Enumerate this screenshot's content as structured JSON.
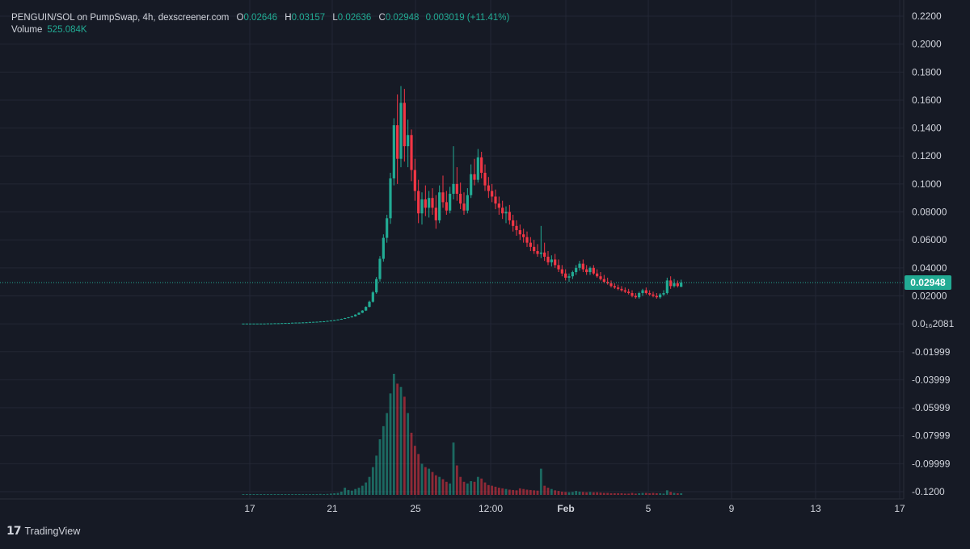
{
  "header": {
    "symbol": "PENGUIN/SOL on PumpSwap, 4h, dexscreener.com",
    "open_label": "O",
    "open": "0.02646",
    "high_label": "H",
    "high": "0.03157",
    "low_label": "L",
    "low": "0.02636",
    "close_label": "C",
    "close": "0.02948",
    "change": "0.003019 (+11.41%)",
    "volume_label": "Volume",
    "volume": "525.084K"
  },
  "footer": {
    "brand": "TradingView",
    "logo_icon": "tradingview-logo-icon"
  },
  "colors": {
    "bg": "#161a25",
    "grid": "#232735",
    "up": "#22ab94",
    "down": "#f23645",
    "text": "#d1d4dc"
  },
  "chart_data": {
    "type": "candlestick",
    "title": "PENGUIN/SOL on PumpSwap, 4h, dexscreener.com",
    "x_tick_labels": [
      "17",
      "21",
      "25",
      "12:00",
      "Feb",
      "5",
      "9",
      "13",
      "17"
    ],
    "y_tick_labels": [
      "0.2200",
      "0.2000",
      "0.1800",
      "0.1600",
      "0.1400",
      "0.1200",
      "0.1000",
      "0.08000",
      "0.06000",
      "0.04000",
      "0.02000",
      "0.0₁₆2081",
      "-0.01999",
      "-0.03999",
      "-0.05999",
      "-0.07999",
      "-0.09999",
      "-0.1200"
    ],
    "ylim": [
      -0.12,
      0.22
    ],
    "last_price": "0.02948",
    "grid": true,
    "bars_per_day": 6,
    "candles": [
      [
        0.0002,
        0.0002,
        0.0002,
        0.0002,
        1
      ],
      [
        0.0002,
        0.0002,
        0.0002,
        0.0002,
        1
      ],
      [
        0.0002,
        0.0002,
        0.0002,
        0.0002,
        1
      ],
      [
        0.0002,
        0.0002,
        0.0002,
        0.0002,
        1
      ],
      [
        0.0002,
        0.0002,
        0.0002,
        0.0002,
        1
      ],
      [
        0.0002,
        0.0002,
        0.0002,
        0.0002,
        1
      ],
      [
        0.0002,
        0.0003,
        0.0002,
        0.0002,
        1
      ],
      [
        0.0002,
        0.0003,
        0.0002,
        0.0003,
        1
      ],
      [
        0.0003,
        0.0004,
        0.0003,
        0.0003,
        1
      ],
      [
        0.0003,
        0.0004,
        0.0003,
        0.0004,
        1
      ],
      [
        0.0004,
        0.0005,
        0.0004,
        0.0004,
        1
      ],
      [
        0.0004,
        0.0005,
        0.0004,
        0.0005,
        1
      ],
      [
        0.0005,
        0.0006,
        0.0005,
        0.0006,
        1
      ],
      [
        0.0006,
        0.0007,
        0.0006,
        0.0006,
        1
      ],
      [
        0.0006,
        0.0008,
        0.0006,
        0.0008,
        1
      ],
      [
        0.0008,
        0.0009,
        0.0008,
        0.0009,
        2
      ],
      [
        0.0009,
        0.001,
        0.0008,
        0.0009,
        1
      ],
      [
        0.0009,
        0.0011,
        0.0009,
        0.001,
        1
      ],
      [
        0.001,
        0.0012,
        0.001,
        0.0011,
        1
      ],
      [
        0.0011,
        0.0014,
        0.0011,
        0.0013,
        2
      ],
      [
        0.0013,
        0.0015,
        0.0013,
        0.0014,
        2
      ],
      [
        0.0014,
        0.0016,
        0.0014,
        0.0015,
        2
      ],
      [
        0.0015,
        0.0018,
        0.0015,
        0.0017,
        3
      ],
      [
        0.0017,
        0.0019,
        0.0016,
        0.0018,
        2
      ],
      [
        0.0018,
        0.0022,
        0.0017,
        0.0021,
        3
      ],
      [
        0.0021,
        0.0025,
        0.002,
        0.0024,
        4
      ],
      [
        0.0024,
        0.0028,
        0.0023,
        0.0027,
        5
      ],
      [
        0.0027,
        0.0032,
        0.0027,
        0.0031,
        6
      ],
      [
        0.0031,
        0.0037,
        0.003,
        0.0035,
        10
      ],
      [
        0.0035,
        0.0043,
        0.0035,
        0.0041,
        22
      ],
      [
        0.0041,
        0.0048,
        0.004,
        0.0047,
        15
      ],
      [
        0.0047,
        0.0056,
        0.0045,
        0.0054,
        13
      ],
      [
        0.0054,
        0.0068,
        0.0052,
        0.0066,
        18
      ],
      [
        0.0066,
        0.0082,
        0.0064,
        0.0079,
        22
      ],
      [
        0.0079,
        0.0098,
        0.0077,
        0.0095,
        28
      ],
      [
        0.0095,
        0.0125,
        0.0092,
        0.0121,
        38
      ],
      [
        0.0121,
        0.0165,
        0.0118,
        0.0158,
        55
      ],
      [
        0.0158,
        0.0235,
        0.0152,
        0.0225,
        85
      ],
      [
        0.0225,
        0.0335,
        0.0215,
        0.032,
        120
      ],
      [
        0.032,
        0.0485,
        0.0302,
        0.0465,
        170
      ],
      [
        0.0465,
        0.064,
        0.0445,
        0.0615,
        210
      ],
      [
        0.0615,
        0.078,
        0.058,
        0.0755,
        250
      ],
      [
        0.0755,
        0.108,
        0.0715,
        0.104,
        310
      ],
      [
        0.104,
        0.147,
        0.099,
        0.142,
        370
      ],
      [
        0.142,
        0.164,
        0.1,
        0.118,
        340
      ],
      [
        0.118,
        0.17,
        0.112,
        0.158,
        330
      ],
      [
        0.158,
        0.168,
        0.116,
        0.127,
        300
      ],
      [
        0.127,
        0.146,
        0.112,
        0.135,
        250
      ],
      [
        0.135,
        0.139,
        0.102,
        0.11,
        190
      ],
      [
        0.11,
        0.118,
        0.088,
        0.095,
        150
      ],
      [
        0.095,
        0.103,
        0.072,
        0.079,
        125
      ],
      [
        0.079,
        0.094,
        0.071,
        0.089,
        95
      ],
      [
        0.089,
        0.099,
        0.077,
        0.083,
        85
      ],
      [
        0.083,
        0.095,
        0.076,
        0.09,
        80
      ],
      [
        0.09,
        0.097,
        0.078,
        0.083,
        70
      ],
      [
        0.083,
        0.092,
        0.068,
        0.074,
        60
      ],
      [
        0.074,
        0.099,
        0.072,
        0.094,
        55
      ],
      [
        0.094,
        0.106,
        0.083,
        0.087,
        48
      ],
      [
        0.087,
        0.095,
        0.078,
        0.081,
        40
      ],
      [
        0.081,
        0.098,
        0.079,
        0.093,
        35
      ],
      [
        0.093,
        0.127,
        0.089,
        0.1,
        160
      ],
      [
        0.1,
        0.112,
        0.088,
        0.093,
        90
      ],
      [
        0.093,
        0.101,
        0.082,
        0.086,
        55
      ],
      [
        0.086,
        0.094,
        0.078,
        0.081,
        40
      ],
      [
        0.081,
        0.097,
        0.079,
        0.092,
        35
      ],
      [
        0.092,
        0.114,
        0.09,
        0.107,
        42
      ],
      [
        0.107,
        0.118,
        0.099,
        0.103,
        40
      ],
      [
        0.103,
        0.125,
        0.101,
        0.119,
        55
      ],
      [
        0.119,
        0.123,
        0.104,
        0.108,
        50
      ],
      [
        0.108,
        0.114,
        0.095,
        0.099,
        38
      ],
      [
        0.099,
        0.105,
        0.09,
        0.095,
        30
      ],
      [
        0.095,
        0.1,
        0.087,
        0.091,
        28
      ],
      [
        0.091,
        0.096,
        0.082,
        0.086,
        25
      ],
      [
        0.086,
        0.091,
        0.078,
        0.083,
        22
      ],
      [
        0.083,
        0.088,
        0.075,
        0.079,
        20
      ],
      [
        0.079,
        0.084,
        0.072,
        0.08,
        18
      ],
      [
        0.08,
        0.085,
        0.071,
        0.074,
        16
      ],
      [
        0.074,
        0.078,
        0.066,
        0.07,
        15
      ],
      [
        0.07,
        0.074,
        0.063,
        0.067,
        14
      ],
      [
        0.067,
        0.071,
        0.06,
        0.064,
        20
      ],
      [
        0.064,
        0.068,
        0.058,
        0.062,
        18
      ],
      [
        0.062,
        0.066,
        0.055,
        0.058,
        16
      ],
      [
        0.058,
        0.062,
        0.052,
        0.055,
        15
      ],
      [
        0.055,
        0.06,
        0.05,
        0.052,
        14
      ],
      [
        0.052,
        0.057,
        0.048,
        0.05,
        13
      ],
      [
        0.05,
        0.07,
        0.047,
        0.051,
        80
      ],
      [
        0.051,
        0.058,
        0.045,
        0.048,
        28
      ],
      [
        0.048,
        0.052,
        0.042,
        0.044,
        22
      ],
      [
        0.044,
        0.049,
        0.041,
        0.046,
        18
      ],
      [
        0.046,
        0.05,
        0.04,
        0.042,
        14
      ],
      [
        0.042,
        0.046,
        0.037,
        0.039,
        12
      ],
      [
        0.039,
        0.042,
        0.034,
        0.036,
        10
      ],
      [
        0.036,
        0.039,
        0.031,
        0.033,
        9
      ],
      [
        0.033,
        0.036,
        0.03,
        0.034,
        8
      ],
      [
        0.034,
        0.038,
        0.032,
        0.037,
        9
      ],
      [
        0.037,
        0.042,
        0.035,
        0.04,
        12
      ],
      [
        0.04,
        0.045,
        0.038,
        0.043,
        10
      ],
      [
        0.043,
        0.046,
        0.037,
        0.039,
        9
      ],
      [
        0.039,
        0.042,
        0.035,
        0.037,
        8
      ],
      [
        0.037,
        0.041,
        0.035,
        0.04,
        9
      ],
      [
        0.04,
        0.042,
        0.035,
        0.036,
        8
      ],
      [
        0.036,
        0.039,
        0.033,
        0.034,
        8
      ],
      [
        0.034,
        0.037,
        0.031,
        0.032,
        7
      ],
      [
        0.032,
        0.035,
        0.029,
        0.03,
        6
      ],
      [
        0.03,
        0.033,
        0.028,
        0.029,
        6
      ],
      [
        0.029,
        0.031,
        0.026,
        0.027,
        5
      ],
      [
        0.027,
        0.029,
        0.025,
        0.026,
        5
      ],
      [
        0.026,
        0.028,
        0.024,
        0.025,
        5
      ],
      [
        0.025,
        0.027,
        0.023,
        0.024,
        5
      ],
      [
        0.024,
        0.026,
        0.022,
        0.023,
        4
      ],
      [
        0.023,
        0.025,
        0.021,
        0.022,
        4
      ],
      [
        0.022,
        0.024,
        0.019,
        0.02,
        6
      ],
      [
        0.02,
        0.022,
        0.018,
        0.019,
        4
      ],
      [
        0.019,
        0.023,
        0.018,
        0.022,
        5
      ],
      [
        0.022,
        0.025,
        0.02,
        0.024,
        6
      ],
      [
        0.024,
        0.026,
        0.021,
        0.022,
        6
      ],
      [
        0.022,
        0.024,
        0.02,
        0.021,
        5
      ],
      [
        0.021,
        0.023,
        0.019,
        0.02,
        6
      ],
      [
        0.02,
        0.022,
        0.018,
        0.019,
        5
      ],
      [
        0.019,
        0.022,
        0.018,
        0.021,
        5
      ],
      [
        0.021,
        0.024,
        0.02,
        0.022,
        4
      ],
      [
        0.022,
        0.033,
        0.021,
        0.031,
        14
      ],
      [
        0.031,
        0.034,
        0.025,
        0.027,
        9
      ],
      [
        0.027,
        0.032,
        0.026,
        0.029,
        6
      ],
      [
        0.029,
        0.031,
        0.026,
        0.027,
        5
      ],
      [
        0.02646,
        0.03157,
        0.02636,
        0.02948,
        5
      ]
    ],
    "volume_unit": "relative"
  }
}
